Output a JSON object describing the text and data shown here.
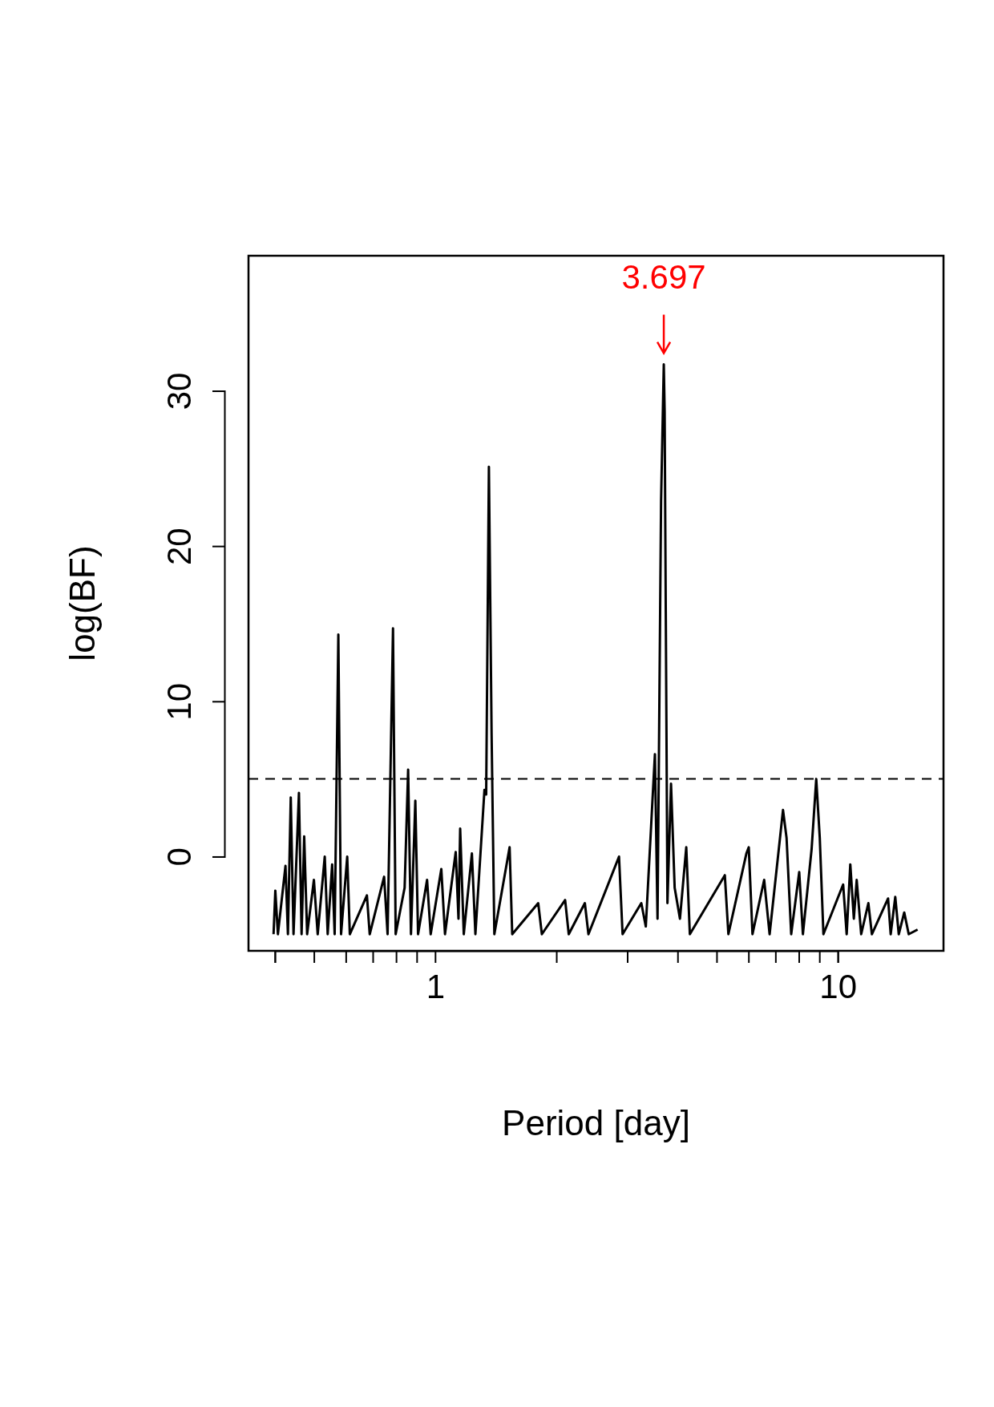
{
  "chart_data": {
    "type": "line",
    "xlabel": "Period [day]",
    "ylabel": "log(BF)",
    "log": "x",
    "xlim": [
      0.344,
      18.3
    ],
    "ylim": [
      -6.07,
      38.7
    ],
    "xticks": [
      {
        "value": 0.4,
        "label": null
      },
      {
        "value": 0.5,
        "label": null
      },
      {
        "value": 0.6,
        "label": null
      },
      {
        "value": 0.7,
        "label": null
      },
      {
        "value": 0.8,
        "label": null
      },
      {
        "value": 0.9,
        "label": null
      },
      1,
      {
        "value": 2,
        "label": null
      },
      {
        "value": 3,
        "label": null
      },
      {
        "value": 4,
        "label": null
      },
      {
        "value": 5,
        "label": null
      },
      {
        "value": 6,
        "label": null
      },
      {
        "value": 7,
        "label": null
      },
      {
        "value": 8,
        "label": null
      },
      {
        "value": 9,
        "label": null
      },
      10
    ],
    "yticks": [
      0,
      10,
      20,
      30
    ],
    "ref_lines": [
      {
        "axis": "y",
        "value": 5,
        "line_style": "dashed",
        "color": "#000000"
      }
    ],
    "annotations": [
      {
        "text": "3.697",
        "x": 3.697,
        "y": 31.7
      }
    ],
    "series": [
      {
        "color": "#000000",
        "x": [
          0.397,
          0.401,
          0.407,
          0.425,
          0.431,
          0.438,
          0.445,
          0.459,
          0.466,
          0.473,
          0.481,
          0.5,
          0.511,
          0.532,
          0.541,
          0.555,
          0.563,
          0.575,
          0.584,
          0.605,
          0.614,
          0.677,
          0.688,
          0.747,
          0.762,
          0.786,
          0.798,
          0.84,
          0.857,
          0.871,
          0.893,
          0.907,
          0.955,
          0.975,
          1.036,
          1.058,
          1.125,
          1.143,
          1.154,
          1.178,
          1.234,
          1.259,
          1.326,
          1.339,
          1.36,
          1.381,
          1.403,
          1.531,
          1.554,
          1.803,
          1.841,
          2.103,
          2.147,
          2.354,
          2.403,
          2.862,
          2.921,
          3.251,
          3.336,
          3.514,
          3.567,
          3.64,
          3.697,
          3.715,
          3.775,
          3.853,
          3.934,
          4.055,
          4.204,
          4.291,
          5.241,
          5.349,
          5.929,
          6.01,
          6.139,
          6.563,
          6.771,
          7.31,
          7.46,
          7.66,
          8.02,
          8.19,
          8.61,
          8.84,
          9.02,
          9.21,
          10.31,
          10.52,
          10.74,
          10.96,
          11.14,
          11.43,
          11.91,
          12.15,
          13.33,
          13.53,
          13.89,
          14.17,
          14.62,
          15.0,
          15.78
        ],
        "values": [
          -5,
          -2.2,
          -5,
          -0.6,
          -5,
          3.8,
          -5,
          4.1,
          -5,
          1.3,
          -5,
          -1.5,
          -5,
          0,
          -5,
          -0.5,
          -5,
          14.3,
          -5,
          0,
          -5,
          -2.5,
          -5,
          -1.3,
          -5,
          14.7,
          -5,
          -2,
          5.6,
          -5,
          3.6,
          -5,
          -1.5,
          -5,
          -0.8,
          -5,
          0.3,
          -4,
          1.8,
          -5,
          0.2,
          -5,
          4.3,
          4,
          25.1,
          8,
          -5,
          0.6,
          -5,
          -3,
          -5,
          -2.8,
          -5,
          -3,
          -5,
          0,
          -5,
          -3,
          -4.5,
          6.6,
          -4,
          22.9,
          31.7,
          28.7,
          -3,
          4.7,
          -2,
          -4,
          0.6,
          -5,
          -1.2,
          -5,
          0.2,
          0.6,
          -5,
          -1.5,
          -5,
          3,
          1.2,
          -5,
          -1,
          -5,
          0.5,
          5,
          1.2,
          -5,
          -1.8,
          -5,
          -0.5,
          -4,
          -1.5,
          -5,
          -3,
          -5,
          -2.7,
          -5,
          -2.6,
          -5,
          -3.6,
          -5,
          -4.7
        ]
      }
    ]
  }
}
